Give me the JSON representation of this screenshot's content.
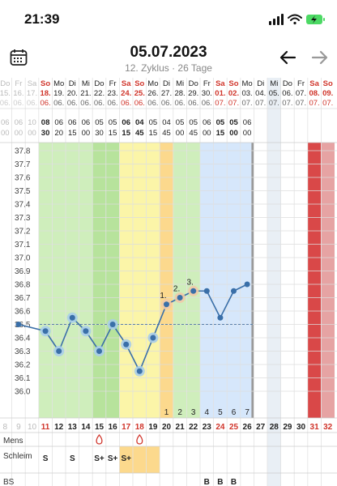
{
  "status": {
    "time": "21:39"
  },
  "header": {
    "title": "05.07.2023",
    "subtitle": "12. Zyklus · 26 Tage"
  },
  "days": [
    {
      "wd": "Do",
      "date": "15.",
      "mon": "06.",
      "t1": "06",
      "t2": "00",
      "n": "8",
      "red": false,
      "faded": true
    },
    {
      "wd": "Fr",
      "date": "16.",
      "mon": "06.",
      "t1": "06",
      "t2": "00",
      "n": "9",
      "red": false,
      "faded": true
    },
    {
      "wd": "Sa",
      "date": "17.",
      "mon": "06.",
      "t1": "10",
      "t2": "00",
      "n": "10",
      "red": true,
      "faded": true
    },
    {
      "wd": "So",
      "date": "18.",
      "mon": "06.",
      "t1": "08",
      "t2": "30",
      "n": "11",
      "red": true,
      "faded": false
    },
    {
      "wd": "Mo",
      "date": "19.",
      "mon": "06.",
      "t1": "06",
      "t2": "20",
      "n": "12",
      "red": false,
      "faded": false
    },
    {
      "wd": "Di",
      "date": "20.",
      "mon": "06.",
      "t1": "06",
      "t2": "15",
      "n": "13",
      "red": false,
      "faded": false
    },
    {
      "wd": "Mi",
      "date": "21.",
      "mon": "06.",
      "t1": "06",
      "t2": "00",
      "n": "14",
      "red": false,
      "faded": false
    },
    {
      "wd": "Do",
      "date": "22.",
      "mon": "06.",
      "t1": "05",
      "t2": "30",
      "n": "15",
      "red": false,
      "faded": false
    },
    {
      "wd": "Fr",
      "date": "23.",
      "mon": "06.",
      "t1": "05",
      "t2": "15",
      "n": "16",
      "red": false,
      "faded": false
    },
    {
      "wd": "Sa",
      "date": "24.",
      "mon": "06.",
      "t1": "06",
      "t2": "15",
      "n": "17",
      "red": true,
      "faded": false
    },
    {
      "wd": "So",
      "date": "25.",
      "mon": "06.",
      "t1": "04",
      "t2": "45",
      "n": "18",
      "red": true,
      "faded": false
    },
    {
      "wd": "Mo",
      "date": "26.",
      "mon": "06.",
      "t1": "05",
      "t2": "15",
      "n": "19",
      "red": false,
      "faded": false
    },
    {
      "wd": "Di",
      "date": "27.",
      "mon": "06.",
      "t1": "04",
      "t2": "45",
      "n": "20",
      "red": false,
      "faded": false
    },
    {
      "wd": "Mi",
      "date": "28.",
      "mon": "06.",
      "t1": "05",
      "t2": "00",
      "n": "21",
      "red": false,
      "faded": false
    },
    {
      "wd": "Do",
      "date": "29.",
      "mon": "06.",
      "t1": "05",
      "t2": "45",
      "n": "22",
      "red": false,
      "faded": false
    },
    {
      "wd": "Fr",
      "date": "30.",
      "mon": "06.",
      "t1": "06",
      "t2": "00",
      "n": "23",
      "red": false,
      "faded": false
    },
    {
      "wd": "Sa",
      "date": "01.",
      "mon": "07.",
      "t1": "05",
      "t2": "15",
      "n": "24",
      "red": true,
      "faded": false
    },
    {
      "wd": "So",
      "date": "02.",
      "mon": "07.",
      "t1": "05",
      "t2": "00",
      "n": "25",
      "red": true,
      "faded": false
    },
    {
      "wd": "Mo",
      "date": "03.",
      "mon": "07.",
      "t1": "06",
      "t2": "00",
      "n": "26",
      "red": false,
      "faded": false
    },
    {
      "wd": "Di",
      "date": "04.",
      "mon": "07.",
      "t1": "",
      "t2": "",
      "n": "27",
      "red": false,
      "faded": false
    },
    {
      "wd": "Mi",
      "date": "05.",
      "mon": "07.",
      "t1": "",
      "t2": "",
      "n": "28",
      "red": false,
      "faded": false
    },
    {
      "wd": "Do",
      "date": "06.",
      "mon": "07.",
      "t1": "",
      "t2": "",
      "n": "29",
      "red": false,
      "faded": false
    },
    {
      "wd": "Fr",
      "date": "07.",
      "mon": "07.",
      "t1": "",
      "t2": "",
      "n": "30",
      "red": false,
      "faded": false
    },
    {
      "wd": "Sa",
      "date": "08.",
      "mon": "07.",
      "t1": "",
      "t2": "",
      "n": "31",
      "red": true,
      "faded": false
    },
    {
      "wd": "So",
      "date": "09.",
      "mon": "07.",
      "t1": "",
      "t2": "",
      "n": "32",
      "red": true,
      "faded": false
    }
  ],
  "chart_data": {
    "type": "line",
    "ylim": [
      35.9,
      37.85
    ],
    "yticks": [
      "37.8",
      "37.7",
      "37.6",
      "37.5",
      "37.4",
      "37.3",
      "37.2",
      "37.1",
      "37.0",
      "36.9",
      "36.8",
      "36.7",
      "36.6",
      "36.5",
      "36.4",
      "36.3",
      "36.2",
      "36.1",
      "36.0"
    ],
    "x": [
      "9",
      "11",
      "12",
      "13",
      "14",
      "15",
      "16",
      "17",
      "18",
      "19",
      "20",
      "21",
      "22",
      "23",
      "24",
      "25",
      "26"
    ],
    "values": [
      36.5,
      36.45,
      36.3,
      36.55,
      36.45,
      36.3,
      36.5,
      36.35,
      36.15,
      36.4,
      36.65,
      36.7,
      36.75,
      36.75,
      36.55,
      36.75,
      36.8
    ],
    "coverline": 36.5,
    "highlights": [
      {
        "x": "11",
        "label": ""
      },
      {
        "x": "12",
        "label": ""
      },
      {
        "x": "13",
        "label": ""
      },
      {
        "x": "14",
        "label": ""
      },
      {
        "x": "15",
        "label": ""
      },
      {
        "x": "16",
        "label": ""
      },
      {
        "x": "17",
        "label": ""
      },
      {
        "x": "18",
        "label": ""
      },
      {
        "x": "19",
        "label": ""
      },
      {
        "x": "20",
        "label": "1."
      },
      {
        "x": "21",
        "label": "2."
      },
      {
        "x": "22",
        "label": "3."
      }
    ],
    "day_counts": [
      {
        "x": "20",
        "n": "1"
      },
      {
        "x": "21",
        "n": "2"
      },
      {
        "x": "22",
        "n": "3"
      },
      {
        "x": "23",
        "n": "4"
      },
      {
        "x": "24",
        "n": "5"
      },
      {
        "x": "25",
        "n": "6"
      },
      {
        "x": "26",
        "n": "7"
      }
    ]
  },
  "rows": {
    "mens_label": "Mens",
    "mens_days": [
      "15",
      "18"
    ],
    "schleim_label": "Schleim",
    "schleim": [
      {
        "x": "11",
        "v": "S"
      },
      {
        "x": "13",
        "v": "S"
      },
      {
        "x": "15",
        "v": "S+"
      },
      {
        "x": "16",
        "v": "S+"
      },
      {
        "x": "17",
        "v": "S+"
      }
    ],
    "bs_label": "BS",
    "bs": [
      {
        "x": "23",
        "v": "B"
      },
      {
        "x": "24",
        "v": "B"
      },
      {
        "x": "25",
        "v": "B"
      }
    ]
  },
  "colors": {
    "accent": "#3a6fa8",
    "red": "#d0352b",
    "green": "#cfeebc",
    "green_dark": "#b7e39c",
    "yellow": "#fbf5a8",
    "orange": "#fcd98d",
    "blue": "#d6e7fb",
    "today": "#e9eff5",
    "dark_red": "#d94848"
  }
}
